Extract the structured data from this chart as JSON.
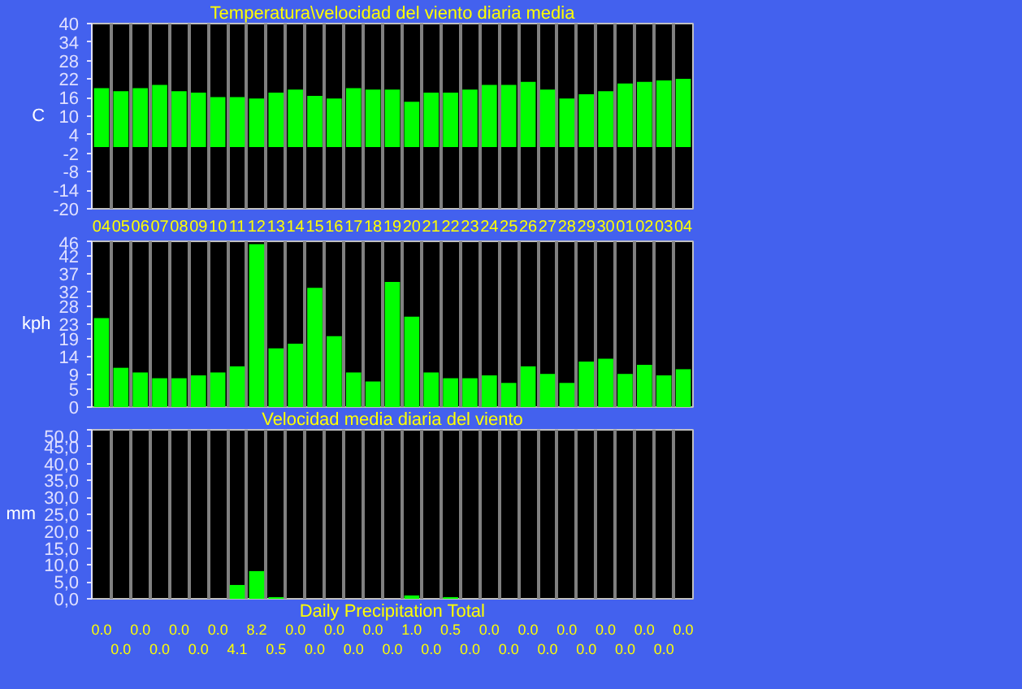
{
  "chart_data": [
    {
      "type": "bar",
      "title": "Temperatura\\velocidad del viento diaria media",
      "ylabel": "C",
      "categories": [
        "04",
        "05",
        "06",
        "07",
        "08",
        "09",
        "10",
        "11",
        "12",
        "13",
        "14",
        "15",
        "16",
        "17",
        "18",
        "19",
        "20",
        "21",
        "22",
        "23",
        "24",
        "25",
        "26",
        "27",
        "28",
        "29",
        "30",
        "01",
        "02",
        "03",
        "04"
      ],
      "values": [
        19.1,
        18.1,
        19.1,
        20.1,
        18.1,
        17.6,
        16.2,
        16.2,
        15.7,
        17.6,
        18.6,
        16.6,
        15.7,
        19.1,
        18.6,
        18.6,
        14.7,
        17.6,
        17.6,
        18.6,
        20.1,
        20.1,
        21.1,
        18.6,
        15.7,
        17.1,
        18.1,
        20.6,
        21.1,
        21.6,
        22.1
      ],
      "color": "#00ff00",
      "ylim": [
        -20,
        40
      ],
      "yticks": [
        -20,
        -14,
        -8,
        -2,
        4,
        10,
        16,
        22,
        28,
        34,
        40
      ],
      "grid": "x"
    },
    {
      "type": "bar",
      "title": "Velocidad media diaria del viento",
      "ylabel": "kph",
      "categories": [
        "04",
        "05",
        "06",
        "07",
        "08",
        "09",
        "10",
        "11",
        "12",
        "13",
        "14",
        "15",
        "16",
        "17",
        "18",
        "19",
        "20",
        "21",
        "22",
        "23",
        "24",
        "25",
        "26",
        "27",
        "28",
        "29",
        "30",
        "01",
        "02",
        "03",
        "04"
      ],
      "values": [
        24.7,
        10.9,
        9.6,
        8.0,
        8.0,
        8.8,
        9.6,
        11.3,
        45.2,
        16.3,
        17.6,
        33.1,
        19.7,
        9.6,
        7.1,
        34.7,
        25.1,
        9.6,
        8.0,
        8.0,
        8.8,
        6.7,
        11.3,
        9.2,
        6.7,
        12.6,
        13.4,
        9.2,
        11.7,
        8.8,
        10.5
      ],
      "color": "#00ff00",
      "ylim": [
        0,
        46
      ],
      "yticks": [
        0,
        5,
        9,
        14,
        19,
        23,
        28,
        32,
        37,
        42,
        46
      ],
      "grid": "x",
      "tick_labels": "y"
    },
    {
      "type": "bar",
      "xlabel": "Daily Precipitation Total",
      "ylabel": "mm",
      "categories": [
        "04",
        "05",
        "06",
        "07",
        "08",
        "09",
        "10",
        "11",
        "12",
        "13",
        "14",
        "15",
        "16",
        "17",
        "18",
        "19",
        "20",
        "21",
        "22",
        "23",
        "24",
        "25",
        "26",
        "27",
        "28",
        "29",
        "30",
        "01",
        "02",
        "03",
        "04"
      ],
      "values": [
        0,
        0,
        0,
        0,
        0,
        0,
        0,
        4.1,
        8.2,
        0.5,
        0,
        0,
        0,
        0,
        0,
        0,
        1.0,
        0,
        0.5,
        0,
        0,
        0,
        0,
        0,
        0,
        0,
        0,
        0,
        0,
        0,
        0
      ],
      "value_labels": [
        "0.0",
        "0.0",
        "0.0",
        "0.0",
        "0.0",
        "0.0",
        "0.0",
        "4.1",
        "8.2",
        "0.5",
        "0.0",
        "0.0",
        "0.0",
        "0.0",
        "0.0",
        "0.0",
        "1.0",
        "0.0",
        "0.5",
        "0.0",
        "0.0",
        "0.0",
        "0.0",
        "0.0",
        "0.0",
        "0.0",
        "0.0",
        "0.0",
        "0.0",
        "0.0",
        "0.0"
      ],
      "color": "#00ff00",
      "ylim": [
        0,
        50
      ],
      "yticks": [
        {
          "value": 0,
          "label": "0,0"
        },
        {
          "value": 5,
          "label": "5,0"
        },
        {
          "value": 10,
          "label": "10,0"
        },
        {
          "value": 15,
          "label": "15,0"
        },
        {
          "value": 20,
          "label": "20,0"
        },
        {
          "value": 25,
          "label": "25,0"
        },
        {
          "value": 30,
          "label": "30,0"
        },
        {
          "value": 35,
          "label": "35,0"
        },
        {
          "value": 40,
          "label": "40,0"
        },
        {
          "value": 45,
          "label": "45,0"
        },
        {
          "value": 50,
          "label": "50,0"
        }
      ],
      "grid": "x",
      "tick_labels": "y"
    }
  ]
}
